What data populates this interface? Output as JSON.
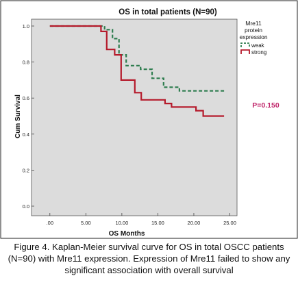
{
  "chart_data": {
    "type": "line",
    "title": "OS in total patients (N=90)",
    "xlabel": "OS Months",
    "ylabel": "Cum Survival",
    "xlim": [
      0,
      25
    ],
    "ylim": [
      0,
      1.0
    ],
    "x_ticks": [
      0,
      5,
      10,
      15,
      20,
      25
    ],
    "x_tick_labels": [
      ".00",
      "5.00",
      "10.00",
      "15.00",
      "20.00",
      "25.00"
    ],
    "y_ticks": [
      0,
      0.2,
      0.4,
      0.6,
      0.8,
      1.0
    ],
    "y_tick_labels": [
      "0.0",
      "0.2",
      "0.4",
      "0.6",
      "0.8",
      "1.0"
    ],
    "grid": false,
    "legend_title": "Mre11 protein expression",
    "legend_placement": "top-right",
    "annotation": "P=0.150",
    "series": [
      {
        "name": "weak",
        "color": "#2e7d4f",
        "dash": true,
        "steps": [
          [
            0,
            1.0
          ],
          [
            7.6,
            1.0
          ],
          [
            7.6,
            0.98
          ],
          [
            8.7,
            0.98
          ],
          [
            8.7,
            0.93
          ],
          [
            9.6,
            0.93
          ],
          [
            9.6,
            0.84
          ],
          [
            10.6,
            0.84
          ],
          [
            10.6,
            0.78
          ],
          [
            12.6,
            0.78
          ],
          [
            12.6,
            0.76
          ],
          [
            14.2,
            0.76
          ],
          [
            14.2,
            0.71
          ],
          [
            15.8,
            0.71
          ],
          [
            15.8,
            0.66
          ],
          [
            18.0,
            0.66
          ],
          [
            18.0,
            0.64
          ],
          [
            24.2,
            0.64
          ]
        ]
      },
      {
        "name": "strong",
        "color": "#b51a2b",
        "dash": false,
        "steps": [
          [
            0,
            1.0
          ],
          [
            7.1,
            1.0
          ],
          [
            7.1,
            0.97
          ],
          [
            7.9,
            0.97
          ],
          [
            7.9,
            0.87
          ],
          [
            9.0,
            0.87
          ],
          [
            9.0,
            0.84
          ],
          [
            9.9,
            0.84
          ],
          [
            9.9,
            0.7
          ],
          [
            11.8,
            0.7
          ],
          [
            11.8,
            0.63
          ],
          [
            12.7,
            0.63
          ],
          [
            12.7,
            0.59
          ],
          [
            16.0,
            0.59
          ],
          [
            16.0,
            0.57
          ],
          [
            16.9,
            0.57
          ],
          [
            16.9,
            0.55
          ],
          [
            20.3,
            0.55
          ],
          [
            20.3,
            0.53
          ],
          [
            21.3,
            0.53
          ],
          [
            21.3,
            0.5
          ],
          [
            24.2,
            0.5
          ]
        ]
      }
    ]
  },
  "caption": "Figure 4. Kaplan-Meier survival curve for OS in total OSCC patients (N=90) with Mre11 expression. Expression of Mre11 failed to show any significant association with overall survival"
}
